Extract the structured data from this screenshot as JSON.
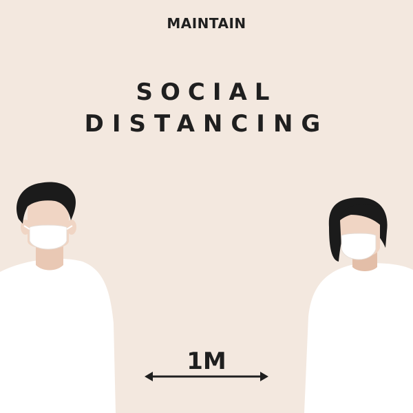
{
  "poster": {
    "top_text": "MAINTAIN",
    "headline_line1": "SOCIAL",
    "headline_line2": "DISTANCING",
    "distance_label": "1M"
  },
  "colors": {
    "background": "#f3e8df",
    "skin": "#f0d5c4",
    "skin_shadow": "#e0bba6",
    "hair": "#1b1b1b",
    "shirt": "#ffffff",
    "mask": "#ffffff",
    "text": "#1f1f1f"
  }
}
